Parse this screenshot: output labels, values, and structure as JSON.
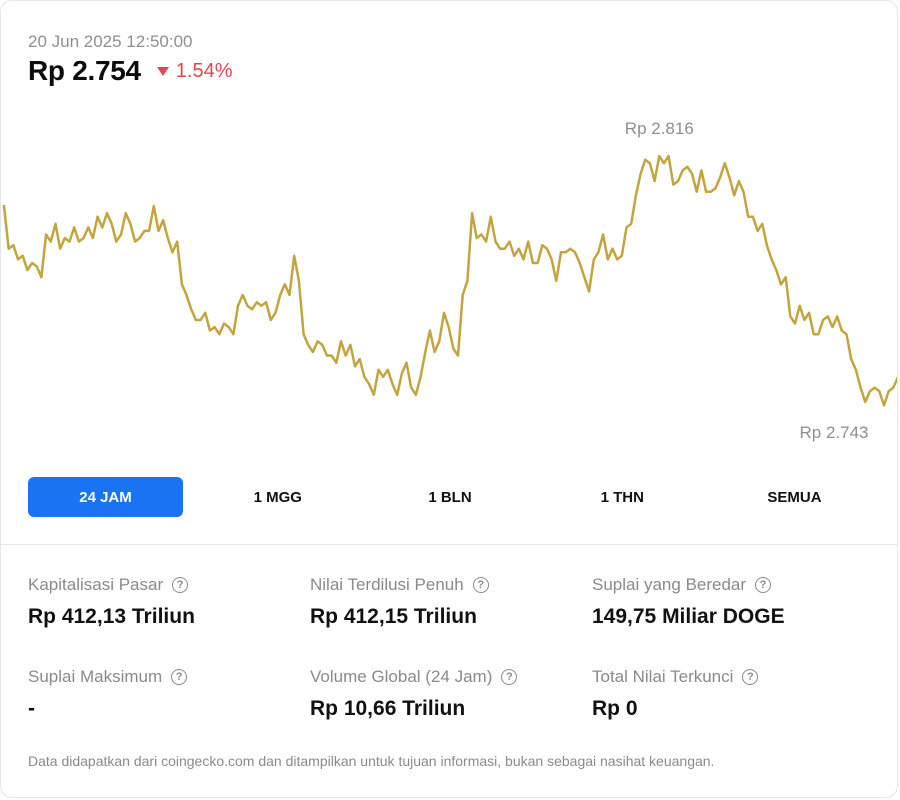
{
  "header": {
    "timestamp": "20 Jun 2025 12:50:00",
    "price": "Rp 2.754",
    "change": "1.54%",
    "change_direction": "down",
    "change_color": "#e0474f",
    "change_icon": "triangle-down-icon"
  },
  "chart_data": {
    "type": "line",
    "line_color": "#c4a43f",
    "high_label": "Rp 2.816",
    "low_label": "Rp 2.743",
    "ylim": [
      2743,
      2816
    ],
    "grid": false,
    "values": [
      2800,
      2788,
      2789,
      2785,
      2786,
      2782,
      2784,
      2783,
      2780,
      2792,
      2790,
      2795,
      2788,
      2791,
      2790,
      2794,
      2790,
      2791,
      2794,
      2791,
      2797,
      2794,
      2798,
      2795,
      2790,
      2792,
      2798,
      2795,
      2790,
      2791,
      2793,
      2793,
      2800,
      2793,
      2796,
      2791,
      2787,
      2790,
      2778,
      2775,
      2771,
      2768,
      2768,
      2770,
      2765,
      2766,
      2764,
      2767,
      2766,
      2764,
      2772,
      2775,
      2772,
      2771,
      2773,
      2772,
      2773,
      2768,
      2770,
      2775,
      2778,
      2775,
      2786,
      2779,
      2764,
      2761,
      2759,
      2762,
      2761,
      2758,
      2758,
      2756,
      2762,
      2758,
      2761,
      2755,
      2757,
      2752,
      2750,
      2747,
      2754,
      2752,
      2754,
      2750,
      2747,
      2753,
      2756,
      2749,
      2747,
      2752,
      2759,
      2765,
      2759,
      2762,
      2770,
      2766,
      2760,
      2758,
      2775,
      2779,
      2798,
      2791,
      2792,
      2790,
      2797,
      2790,
      2788,
      2788,
      2790,
      2786,
      2788,
      2785,
      2790,
      2784,
      2784,
      2789,
      2788,
      2785,
      2779,
      2787,
      2787,
      2788,
      2787,
      2784,
      2780,
      2776,
      2785,
      2787,
      2792,
      2785,
      2788,
      2785,
      2786,
      2794,
      2795,
      2803,
      2809,
      2813,
      2812,
      2807,
      2814,
      2812,
      2814,
      2806,
      2807,
      2810,
      2811,
      2809,
      2804,
      2810,
      2804,
      2804,
      2805,
      2808,
      2812,
      2808,
      2803,
      2807,
      2804,
      2797,
      2797,
      2793,
      2795,
      2789,
      2785,
      2782,
      2778,
      2780,
      2769,
      2767,
      2772,
      2768,
      2770,
      2764,
      2764,
      2768,
      2769,
      2766,
      2769,
      2765,
      2764,
      2757,
      2754,
      2749,
      2745,
      2748,
      2749,
      2748,
      2744,
      2748,
      2749,
      2752
    ]
  },
  "tabs": [
    {
      "label": "24 JAM",
      "active": true
    },
    {
      "label": "1 MGG",
      "active": false
    },
    {
      "label": "1 BLN",
      "active": false
    },
    {
      "label": "1 THN",
      "active": false
    },
    {
      "label": "SEMUA",
      "active": false
    }
  ],
  "stats": [
    {
      "label": "Kapitalisasi Pasar",
      "value": "Rp 412,13 Triliun"
    },
    {
      "label": "Nilai Terdilusi Penuh",
      "value": "Rp 412,15 Triliun"
    },
    {
      "label": "Suplai yang Beredar",
      "value": "149,75 Miliar DOGE"
    },
    {
      "label": "Suplai Maksimum",
      "value": "-"
    },
    {
      "label": "Volume Global (24 Jam)",
      "value": "Rp 10,66 Triliun"
    },
    {
      "label": "Total Nilai Terkunci",
      "value": "Rp 0"
    }
  ],
  "help_icon": "question-circle-icon",
  "help_glyph": "?",
  "disclaimer": "Data didapatkan dari coingecko.com dan ditampilkan untuk tujuan informasi, bukan sebagai nasihat keuangan."
}
